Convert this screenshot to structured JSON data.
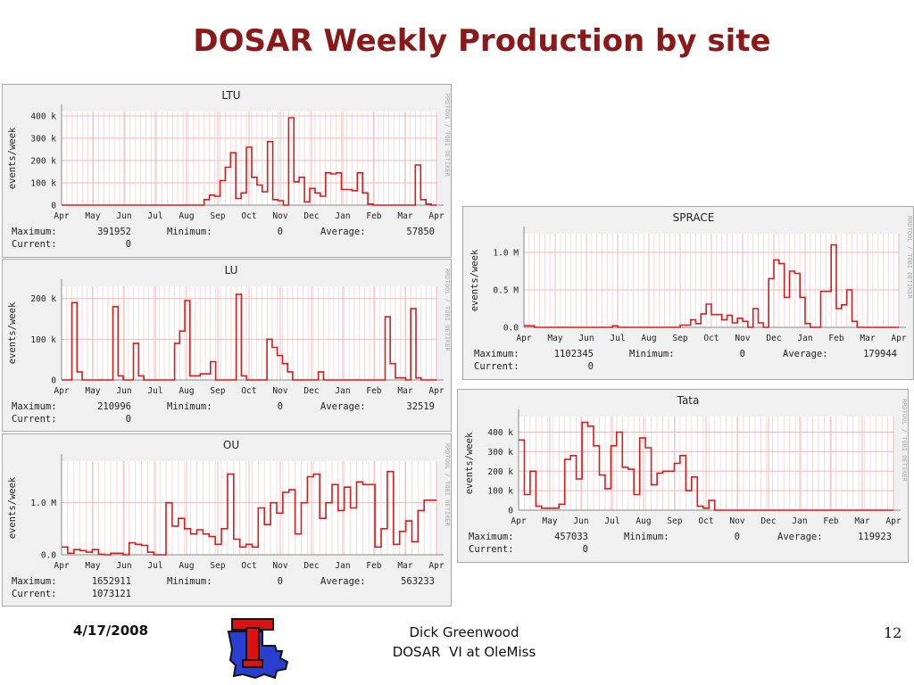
{
  "slide": {
    "title": "DOSAR Weekly Production by site",
    "footer_date": "4/17/2008",
    "footer_author": "Dick Greenwood",
    "footer_event": "DOSAR  VI at OleMiss",
    "page_number": "12"
  },
  "colors": {
    "line": "#e01818",
    "grid": "#f2b8b8",
    "background": "#f0f0f0",
    "plot_bg": "#ffffff",
    "title": "#8a1a1a"
  },
  "chart_data": [
    {
      "type": "line",
      "title": "LTU",
      "ylabel": "events/week",
      "watermark": "RRDTOOL / TOBI OETIKER",
      "months": [
        "Apr",
        "May",
        "Jun",
        "Jul",
        "Aug",
        "Sep",
        "Oct",
        "Nov",
        "Dec",
        "Jan",
        "Feb",
        "Mar",
        "Apr"
      ],
      "yticks": [
        {
          "v": 0,
          "label": "0"
        },
        {
          "v": 100000,
          "label": "100 k"
        },
        {
          "v": 200000,
          "label": "200 k"
        },
        {
          "v": 300000,
          "label": "300 k"
        },
        {
          "v": 400000,
          "label": "400 k"
        }
      ],
      "ylim": [
        0,
        420000
      ],
      "values": [
        0,
        0,
        0,
        0,
        0,
        0,
        0,
        0,
        0,
        0,
        0,
        0,
        0,
        0,
        0,
        0,
        0,
        0,
        0,
        0,
        0,
        0,
        0,
        0,
        0,
        0,
        0,
        25000,
        45000,
        40000,
        110000,
        170000,
        235000,
        30000,
        55000,
        260000,
        125000,
        90000,
        60000,
        285000,
        25000,
        20000,
        0,
        392000,
        105000,
        125000,
        15000,
        75000,
        55000,
        40000,
        145000,
        140000,
        145000,
        70000,
        70000,
        65000,
        145000,
        55000,
        5000,
        0,
        0,
        0,
        0,
        0,
        0,
        0,
        0,
        180000,
        25000,
        5000,
        0
      ],
      "stats": {
        "max_label": "Maximum:",
        "max": "391952",
        "min_label": "Minimum:",
        "min": "0",
        "avg_label": "Average:",
        "avg": "57850",
        "cur_label": "Current:",
        "cur": "0"
      }
    },
    {
      "type": "line",
      "title": "LU",
      "ylabel": "events/week",
      "watermark": "RRDTOOL / TOBI OETIKER",
      "months": [
        "Apr",
        "May",
        "Jun",
        "Jul",
        "Aug",
        "Sep",
        "Oct",
        "Nov",
        "Dec",
        "Jan",
        "Feb",
        "Mar",
        "Apr"
      ],
      "yticks": [
        {
          "v": 0,
          "label": "0"
        },
        {
          "v": 100000,
          "label": "100 k"
        },
        {
          "v": 200000,
          "label": "200 k"
        }
      ],
      "ylim": [
        0,
        230000
      ],
      "values": [
        0,
        0,
        190000,
        20000,
        0,
        0,
        0,
        0,
        0,
        0,
        180000,
        10000,
        0,
        0,
        90000,
        10000,
        0,
        0,
        0,
        0,
        0,
        0,
        90000,
        120000,
        195000,
        10000,
        10000,
        15000,
        15000,
        45000,
        0,
        0,
        0,
        0,
        210000,
        10000,
        0,
        0,
        0,
        0,
        100000,
        80000,
        60000,
        40000,
        20000,
        0,
        0,
        0,
        0,
        0,
        20000,
        0,
        0,
        0,
        0,
        0,
        0,
        0,
        0,
        0,
        0,
        0,
        0,
        155000,
        40000,
        5000,
        5000,
        0,
        175000,
        5000,
        0,
        0,
        0
      ],
      "stats": {
        "max_label": "Maximum:",
        "max": "210996",
        "min_label": "Minimum:",
        "min": "0",
        "avg_label": "Average:",
        "avg": "32519",
        "cur_label": "Current:",
        "cur": "0"
      }
    },
    {
      "type": "line",
      "title": "OU",
      "ylabel": "events/week",
      "watermark": "RRDTOOL / TOBI OETIKER",
      "months": [
        "Apr",
        "May",
        "Jun",
        "Jul",
        "Aug",
        "Sep",
        "Oct",
        "Nov",
        "Dec",
        "Jan",
        "Feb",
        "Mar",
        "Apr"
      ],
      "yticks": [
        {
          "v": 0,
          "label": "0.0"
        },
        {
          "v": 1000000,
          "label": "1.0 M"
        }
      ],
      "ylim": [
        0,
        1800000
      ],
      "values": [
        150000,
        30000,
        100000,
        80000,
        50000,
        100000,
        10000,
        0,
        30000,
        30000,
        0,
        230000,
        200000,
        180000,
        50000,
        0,
        0,
        1000000,
        550000,
        700000,
        500000,
        400000,
        480000,
        400000,
        350000,
        200000,
        500000,
        1550000,
        300000,
        150000,
        200000,
        150000,
        900000,
        580000,
        1000000,
        800000,
        1200000,
        1250000,
        400000,
        1000000,
        1500000,
        1550000,
        700000,
        1000000,
        1350000,
        850000,
        1300000,
        900000,
        1400000,
        1350000,
        1350000,
        150000,
        500000,
        1600000,
        200000,
        450000,
        650000,
        250000,
        850000,
        1050000,
        1050000
      ],
      "stats": {
        "max_label": "Maximum:",
        "max": "1652911",
        "min_label": "Minimum:",
        "min": "0",
        "avg_label": "Average:",
        "avg": "563233",
        "cur_label": "Current:",
        "cur": "1073121"
      }
    },
    {
      "type": "line",
      "title": "SPRACE",
      "ylabel": "events/week",
      "watermark": "RRDTOOL / TOBI OETIKER",
      "months": [
        "Apr",
        "May",
        "Jun",
        "Jul",
        "Aug",
        "Sep",
        "Oct",
        "Nov",
        "Dec",
        "Jan",
        "Feb",
        "Mar",
        "Apr"
      ],
      "yticks": [
        {
          "v": 0,
          "label": "0.0"
        },
        {
          "v": 500000,
          "label": "0.5 M"
        },
        {
          "v": 1000000,
          "label": "1.0 M"
        }
      ],
      "ylim": [
        0,
        1250000
      ],
      "values": [
        20000,
        20000,
        0,
        0,
        0,
        0,
        0,
        0,
        0,
        0,
        0,
        0,
        0,
        0,
        0,
        0,
        0,
        20000,
        0,
        0,
        0,
        0,
        0,
        0,
        0,
        0,
        0,
        0,
        0,
        0,
        30000,
        30000,
        100000,
        50000,
        180000,
        310000,
        170000,
        170000,
        100000,
        160000,
        60000,
        120000,
        80000,
        0,
        250000,
        60000,
        0,
        650000,
        900000,
        850000,
        400000,
        750000,
        720000,
        400000,
        50000,
        0,
        0,
        480000,
        480000,
        1100000,
        250000,
        300000,
        500000,
        80000,
        0,
        0,
        0,
        0,
        0,
        0,
        0,
        0
      ],
      "stats": {
        "max_label": "Maximum:",
        "max": "1102345",
        "min_label": "Minimum:",
        "min": "0",
        "avg_label": "Average:",
        "avg": "179944",
        "cur_label": "Current:",
        "cur": "0"
      }
    },
    {
      "type": "line",
      "title": "Tata",
      "ylabel": "events/week",
      "watermark": "RRDTOOL / TOBI OETIKER",
      "months": [
        "Apr",
        "May",
        "Jun",
        "Jul",
        "Aug",
        "Sep",
        "Oct",
        "Nov",
        "Dec",
        "Jan",
        "Feb",
        "Mar",
        "Apr"
      ],
      "yticks": [
        {
          "v": 0,
          "label": "0"
        },
        {
          "v": 100000,
          "label": "100 k"
        },
        {
          "v": 200000,
          "label": "200 k"
        },
        {
          "v": 300000,
          "label": "300 k"
        },
        {
          "v": 400000,
          "label": "400 k"
        }
      ],
      "ylim": [
        0,
        480000
      ],
      "values": [
        360000,
        80000,
        200000,
        20000,
        10000,
        10000,
        10000,
        30000,
        260000,
        280000,
        160000,
        450000,
        430000,
        330000,
        180000,
        110000,
        330000,
        400000,
        220000,
        210000,
        80000,
        370000,
        320000,
        130000,
        190000,
        200000,
        200000,
        240000,
        280000,
        100000,
        170000,
        20000,
        10000,
        50000,
        0,
        0,
        0,
        0,
        0,
        0,
        0,
        0,
        0,
        0,
        0,
        0,
        0,
        0,
        0,
        0,
        0,
        0,
        0,
        0,
        0,
        0,
        0,
        0,
        0,
        0,
        0,
        0,
        0,
        0,
        0
      ],
      "stats": {
        "max_label": "Maximum:",
        "max": "457033",
        "min_label": "Minimum:",
        "min": "0",
        "avg_label": "Average:",
        "avg": "119923",
        "cur_label": "Current:",
        "cur": "0"
      }
    }
  ]
}
